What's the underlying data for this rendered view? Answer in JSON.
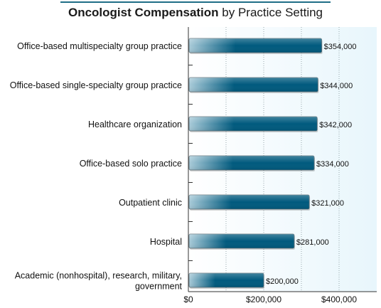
{
  "title": {
    "bold_part": "Oncologist Compensation",
    "rest_part": " by Practice Setting"
  },
  "chart_data": {
    "type": "bar",
    "orientation": "horizontal",
    "title": "Oncologist Compensation by Practice Setting",
    "categories": [
      [
        "Office-based multispecialty group practice"
      ],
      [
        "Office-based single-specialty group practice"
      ],
      [
        "Healthcare organization"
      ],
      [
        "Office-based solo practice"
      ],
      [
        "Outpatient clinic"
      ],
      [
        "Hospital"
      ],
      [
        "Academic (nonhospital), research, military,",
        "government"
      ]
    ],
    "values": [
      354000,
      344000,
      342000,
      334000,
      321000,
      281000,
      200000
    ],
    "value_labels": [
      "$354,000",
      "$344,000",
      "$342,000",
      "$334,000",
      "$321,000",
      "$281,000",
      "$200,000"
    ],
    "xlim": [
      0,
      500000
    ],
    "x_ticks": [
      0,
      200000,
      400000
    ],
    "x_tick_labels": [
      "$0",
      "$200,000",
      "$400,000"
    ],
    "grid": true,
    "colors": {
      "bar_dark": "#005a7e",
      "bar_light": "#a9cbd9",
      "plot_bg_right": "#e8f6fc"
    }
  }
}
